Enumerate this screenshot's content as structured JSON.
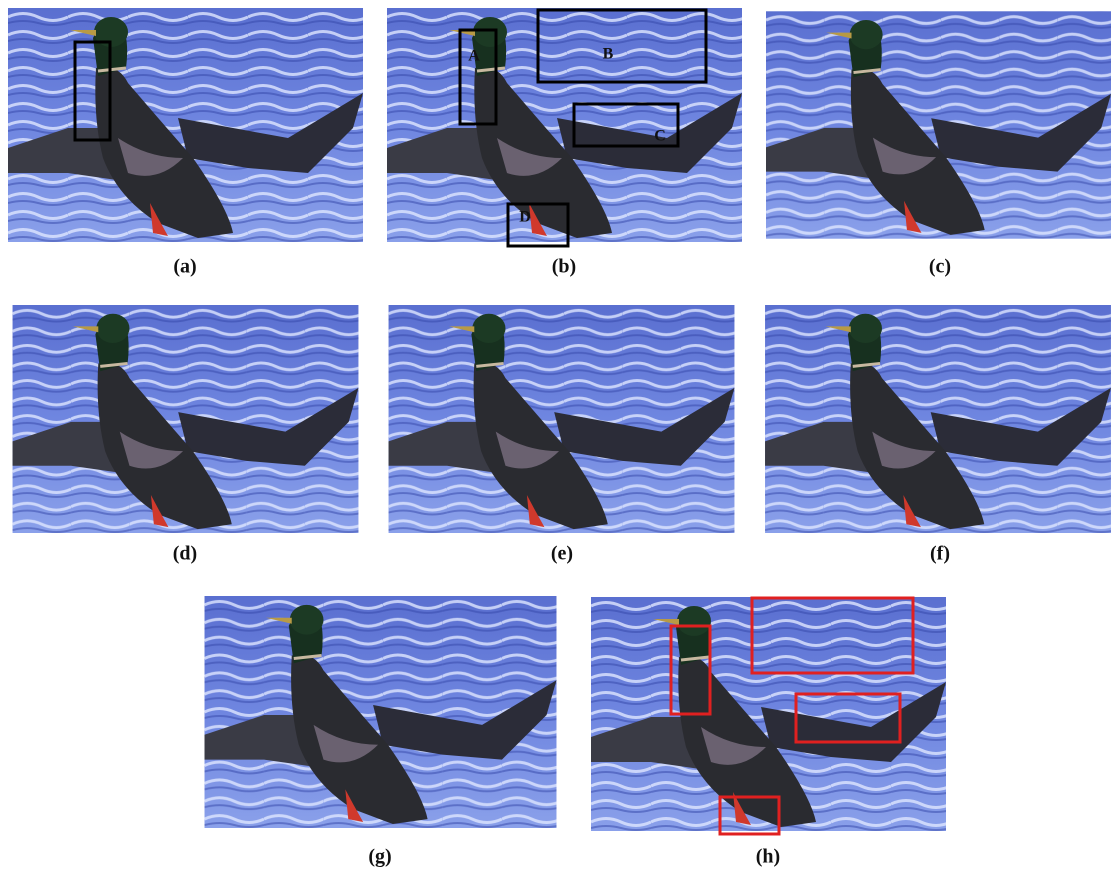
{
  "panels": [
    {
      "caption": "(a)"
    },
    {
      "caption": "(b)",
      "box_labels": [
        "A",
        "B",
        "C",
        "D"
      ]
    },
    {
      "caption": "(c)"
    },
    {
      "caption": "(d)"
    },
    {
      "caption": "(e)"
    },
    {
      "caption": "(f)"
    },
    {
      "caption": "(g)"
    },
    {
      "caption": "(h)"
    }
  ]
}
